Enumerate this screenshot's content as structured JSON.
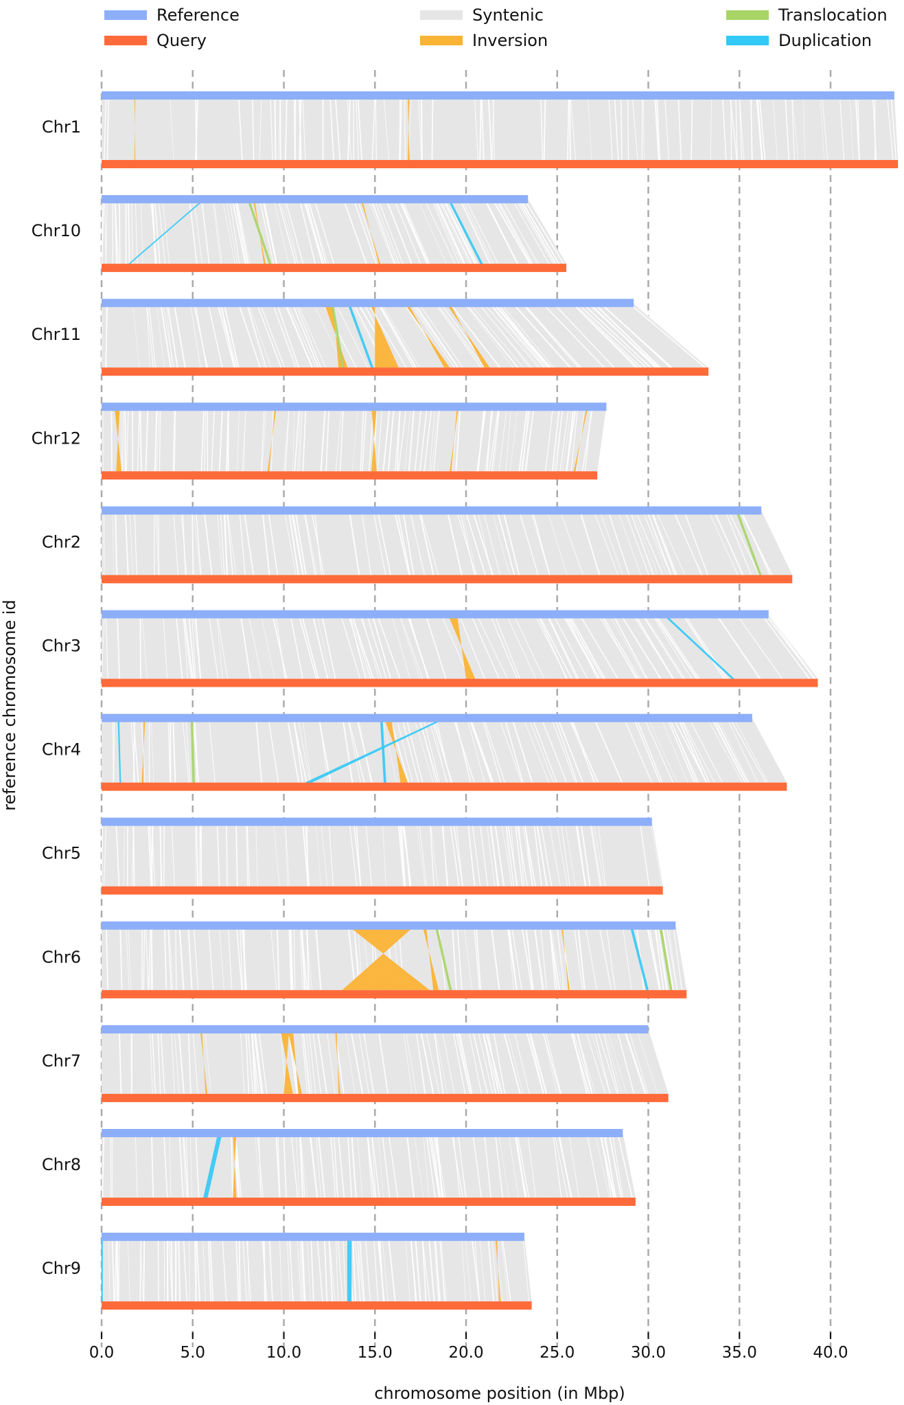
{
  "chart_data": {
    "type": "synteny",
    "xlabel": "chromosome position (in Mbp)",
    "ylabel": "reference chromosome id",
    "xlim": [
      0,
      44
    ],
    "x_ticks": [
      0,
      5,
      10,
      15,
      20,
      25,
      30,
      35,
      40
    ],
    "x_tick_labels": [
      "0.0",
      "5.0",
      "10.0",
      "15.0",
      "20.0",
      "25.0",
      "30.0",
      "35.0",
      "40.0"
    ],
    "grid": "vertical dashed at ticks",
    "legend": {
      "placement": "top",
      "entries": [
        {
          "label": "Reference",
          "color": "#8daffa"
        },
        {
          "label": "Query",
          "color": "#ff6a3a"
        },
        {
          "label": "Syntenic",
          "color": "#e6e6e6"
        },
        {
          "label": "Inversion",
          "color": "#fbb335"
        },
        {
          "label": "Translocation",
          "color": "#a9d566"
        },
        {
          "label": "Duplication",
          "color": "#32c9f7"
        }
      ]
    },
    "colors": {
      "reference": "#8daffa",
      "query": "#ff6a3a",
      "syntenic": "#e6e6e6",
      "inversion": "#fbb335",
      "translocation": "#a9d566",
      "duplication": "#32c9f7",
      "grid": "#aaaaaa"
    },
    "chromosomes": [
      {
        "id": "Chr1",
        "ref_length": 43.5,
        "query_length": 43.7,
        "inversions": [
          [
            1.8,
            1.85,
            1.8,
            1.85
          ],
          [
            16.8,
            16.9,
            16.8,
            16.9
          ]
        ],
        "translocations": [],
        "duplications": []
      },
      {
        "id": "Chr10",
        "ref_length": 23.4,
        "query_length": 25.5,
        "inversions": [
          [
            8.3,
            8.4,
            8.9,
            9.0
          ],
          [
            14.2,
            14.3,
            15.2,
            15.3
          ]
        ],
        "translocations": [
          [
            8.0,
            8.1,
            9.2,
            9.3
          ]
        ],
        "duplications": [
          [
            5.6,
            5.65,
            1.5,
            1.55
          ],
          [
            19.0,
            19.1,
            20.8,
            20.9
          ]
        ]
      },
      {
        "id": "Chr11",
        "ref_length": 29.2,
        "query_length": 33.3,
        "inversions": [
          [
            12.2,
            12.7,
            13.0,
            13.5
          ],
          [
            14.7,
            15.0,
            15.0,
            16.3
          ],
          [
            16.6,
            16.8,
            18.8,
            19.1
          ],
          [
            18.9,
            19.1,
            21.0,
            21.3
          ]
        ],
        "translocations": [
          [
            12.6,
            12.7,
            13.2,
            13.3
          ]
        ],
        "duplications": [
          [
            13.5,
            13.6,
            14.8,
            14.9
          ]
        ]
      },
      {
        "id": "Chr12",
        "ref_length": 27.7,
        "query_length": 27.2,
        "inversions": [
          [
            0.7,
            1.0,
            0.8,
            1.1
          ],
          [
            9.5,
            9.6,
            9.1,
            9.2
          ],
          [
            14.8,
            15.1,
            14.8,
            15.1
          ],
          [
            19.5,
            19.6,
            19.1,
            19.2
          ],
          [
            26.6,
            26.7,
            25.9,
            26.0
          ]
        ],
        "translocations": [],
        "duplications": []
      },
      {
        "id": "Chr2",
        "ref_length": 36.2,
        "query_length": 37.9,
        "inversions": [],
        "translocations": [
          [
            34.8,
            34.9,
            36.1,
            36.2
          ]
        ],
        "duplications": []
      },
      {
        "id": "Chr3",
        "ref_length": 36.6,
        "query_length": 39.3,
        "inversions": [
          [
            19.0,
            19.5,
            20.0,
            20.5
          ]
        ],
        "translocations": [],
        "duplications": [
          [
            30.8,
            30.9,
            34.6,
            34.7
          ]
        ]
      },
      {
        "id": "Chr4",
        "ref_length": 35.7,
        "query_length": 37.6,
        "inversions": [
          [
            2.3,
            2.4,
            2.2,
            2.3
          ],
          [
            15.5,
            15.9,
            16.4,
            16.8
          ]
        ],
        "translocations": [
          [
            4.9,
            5.0,
            5.0,
            5.1
          ]
        ],
        "duplications": [
          [
            18.8,
            18.9,
            11.2,
            11.5
          ],
          [
            0.9,
            0.95,
            1.0,
            1.05
          ],
          [
            15.3,
            15.4,
            15.5,
            15.6
          ]
        ]
      },
      {
        "id": "Chr5",
        "ref_length": 30.2,
        "query_length": 30.8,
        "inversions": [],
        "translocations": [],
        "duplications": []
      },
      {
        "id": "Chr6",
        "ref_length": 31.5,
        "query_length": 32.1,
        "inversions": [
          [
            13.5,
            17.2,
            13.2,
            18.0
          ],
          [
            17.6,
            17.8,
            18.2,
            18.5
          ],
          [
            25.2,
            25.3,
            25.6,
            25.7
          ]
        ],
        "translocations": [
          [
            18.3,
            18.4,
            19.1,
            19.2
          ],
          [
            30.6,
            30.7,
            31.2,
            31.3
          ]
        ],
        "duplications": [
          [
            29.0,
            29.1,
            29.9,
            30.0
          ]
        ]
      },
      {
        "id": "Chr7",
        "ref_length": 30.0,
        "query_length": 31.1,
        "inversions": [
          [
            5.4,
            5.5,
            5.7,
            5.8
          ],
          [
            9.8,
            10.3,
            10.0,
            10.5
          ],
          [
            10.2,
            10.5,
            10.8,
            11.0
          ],
          [
            12.8,
            12.9,
            13.0,
            13.1
          ]
        ],
        "translocations": [],
        "duplications": []
      },
      {
        "id": "Chr8",
        "ref_length": 28.6,
        "query_length": 29.3,
        "inversions": [
          [
            7.2,
            7.4,
            7.2,
            7.4
          ]
        ],
        "translocations": [],
        "duplications": [
          [
            6.4,
            6.6,
            5.6,
            5.8
          ]
        ]
      },
      {
        "id": "Chr9",
        "ref_length": 23.2,
        "query_length": 23.6,
        "inversions": [
          [
            21.6,
            21.7,
            21.8,
            21.9
          ]
        ],
        "translocations": [],
        "duplications": [
          [
            13.5,
            13.7,
            13.5,
            13.7
          ],
          [
            0.0,
            0.05,
            0.0,
            0.05
          ]
        ]
      }
    ]
  }
}
